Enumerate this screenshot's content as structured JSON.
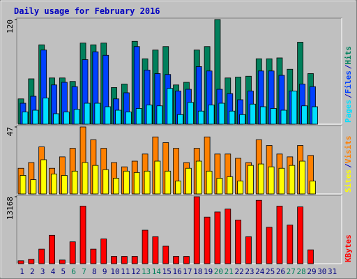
{
  "chart_data": [
    {
      "type": "bar",
      "title": "Daily usage for February 2016",
      "ylim": [
        0,
        120
      ],
      "yticks": [
        120
      ],
      "legend_separator": "/",
      "series": [
        {
          "name": "Hits",
          "color": "#00805c",
          "values": [
            29,
            52,
            91,
            53,
            53,
            49,
            93,
            91,
            93,
            42,
            46,
            95,
            75,
            85,
            89,
            45,
            48,
            85,
            89,
            120,
            53,
            54,
            55,
            75,
            75,
            76,
            63,
            94,
            58,
            null,
            null
          ]
        },
        {
          "name": "Files",
          "color": "#0040ff",
          "values": [
            24,
            32,
            85,
            45,
            48,
            43,
            74,
            83,
            79,
            29,
            36,
            89,
            62,
            58,
            57,
            38,
            40,
            66,
            61,
            40,
            35,
            28,
            38,
            61,
            61,
            56,
            38,
            46,
            43,
            null,
            null
          ]
        },
        {
          "name": "Pages",
          "color": "#00e0ff",
          "values": [
            14,
            16,
            30,
            12,
            14,
            17,
            24,
            24,
            20,
            16,
            14,
            18,
            22,
            21,
            41,
            11,
            25,
            15,
            22,
            24,
            15,
            11,
            23,
            20,
            18,
            16,
            38,
            21,
            20,
            null,
            null
          ]
        }
      ]
    },
    {
      "type": "bar",
      "ylim": [
        0,
        47
      ],
      "yticks": [
        47
      ],
      "legend_separator": "/",
      "series": [
        {
          "name": "Visits",
          "color": "#ff8000",
          "values": [
            18,
            22,
            33,
            18,
            26,
            32,
            47,
            38,
            32,
            22,
            19,
            23,
            28,
            40,
            36,
            32,
            22,
            32,
            40,
            28,
            28,
            25,
            22,
            38,
            34,
            28,
            26,
            34,
            27,
            null,
            null
          ]
        },
        {
          "name": "Sites",
          "color": "#ffff00",
          "values": [
            13,
            10,
            24,
            14,
            13,
            16,
            22,
            20,
            17,
            11,
            16,
            15,
            16,
            23,
            16,
            9,
            18,
            23,
            16,
            11,
            12,
            9,
            20,
            21,
            19,
            18,
            20,
            23,
            9,
            null,
            null
          ]
        }
      ]
    },
    {
      "type": "bar",
      "ylim": [
        0,
        13168
      ],
      "yticks": [
        13168
      ],
      "categories": [
        "1",
        "2",
        "3",
        "4",
        "5",
        "6",
        "7",
        "8",
        "9",
        "10",
        "11",
        "12",
        "13",
        "14",
        "15",
        "16",
        "17",
        "18",
        "19",
        "20",
        "21",
        "22",
        "23",
        "24",
        "25",
        "26",
        "27",
        "28",
        "29",
        "30",
        "31"
      ],
      "category_colors": [
        "#000080",
        "#000080",
        "#000080",
        "#000080",
        "#000080",
        "#00805c",
        "#00805c",
        "#000080",
        "#000080",
        "#000080",
        "#000080",
        "#000080",
        "#00805c",
        "#00805c",
        "#000080",
        "#000080",
        "#000080",
        "#000080",
        "#000080",
        "#00805c",
        "#00805c",
        "#000080",
        "#000080",
        "#000080",
        "#000080",
        "#000080",
        "#00805c",
        "#00805c",
        "#000080",
        "#000080",
        "#000080"
      ],
      "series": [
        {
          "name": "KBytes",
          "color": "#ff0000",
          "values": [
            572,
            859,
            2863,
            5582,
            716,
            4294,
            11308,
            2863,
            4866,
            1431,
            1431,
            1431,
            6584,
            5296,
            3435,
            1431,
            1431,
            13168,
            9161,
            10163,
            10735,
            8588,
            5296,
            12453,
            7157,
            11308,
            7586,
            11164,
            2720,
            null,
            null
          ]
        }
      ]
    }
  ]
}
